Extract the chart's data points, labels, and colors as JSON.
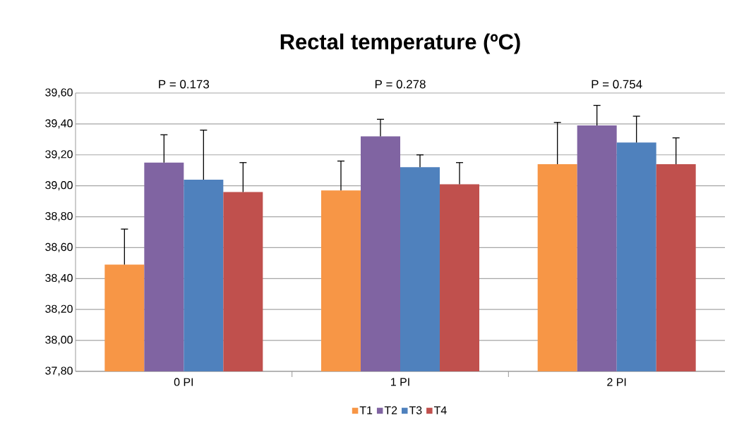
{
  "chart_data": {
    "type": "bar",
    "title": "Rectal temperature (ºC)",
    "categories": [
      "0 PI",
      "1 PI",
      "2 PI"
    ],
    "series": [
      {
        "name": "T1",
        "color": "#f79646",
        "values": [
          38.49,
          38.97,
          39.14
        ],
        "errors": [
          [
            38.49,
            38.72
          ],
          [
            38.97,
            39.16
          ],
          [
            39.14,
            39.41
          ]
        ]
      },
      {
        "name": "T2",
        "color": "#8064a2",
        "values": [
          39.15,
          39.32,
          39.39
        ],
        "errors": [
          [
            39.15,
            39.33
          ],
          [
            39.32,
            39.43
          ],
          [
            39.39,
            39.52
          ]
        ]
      },
      {
        "name": "T3",
        "color": "#4f81bd",
        "values": [
          39.04,
          39.12,
          39.28
        ],
        "errors": [
          [
            39.04,
            39.36
          ],
          [
            39.12,
            39.2
          ],
          [
            39.28,
            39.45
          ]
        ]
      },
      {
        "name": "T4",
        "color": "#c0504d",
        "values": [
          38.96,
          39.01,
          39.14
        ],
        "errors": [
          [
            38.96,
            39.15
          ],
          [
            39.01,
            39.15
          ],
          [
            39.14,
            39.31
          ]
        ]
      }
    ],
    "annotations": [
      "P = 0.173",
      "P  = 0.278",
      "P  = 0.754"
    ],
    "ylim": [
      37.8,
      39.6
    ],
    "yticks": [
      {
        "value": 37.8,
        "label": "37,80"
      },
      {
        "value": 38.0,
        "label": "38,00"
      },
      {
        "value": 38.2,
        "label": "38,20"
      },
      {
        "value": 38.4,
        "label": "38,40"
      },
      {
        "value": 38.6,
        "label": "38,60"
      },
      {
        "value": 38.8,
        "label": "38,80"
      },
      {
        "value": 39.0,
        "label": "39,00"
      },
      {
        "value": 39.2,
        "label": "39,20"
      },
      {
        "value": 39.4,
        "label": "39,40"
      },
      {
        "value": 39.6,
        "label": "39,60"
      }
    ],
    "grid": "y",
    "legend": "bottom"
  }
}
